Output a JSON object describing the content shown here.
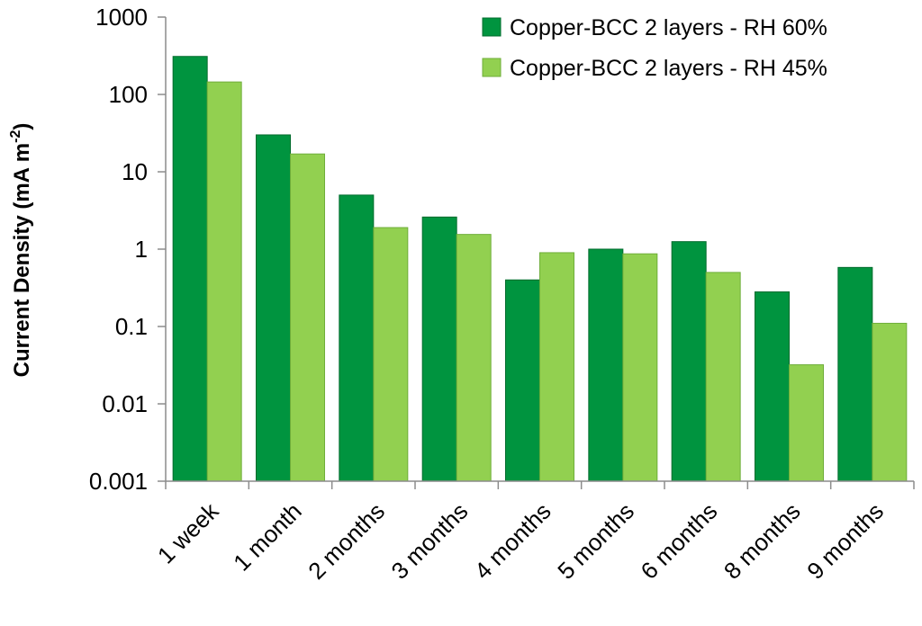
{
  "chart_data": {
    "type": "bar",
    "categories": [
      "1 week",
      "1 month",
      "2 months",
      "3 months",
      "4 months",
      "5 months",
      "6 months",
      "8 months",
      "9 months"
    ],
    "series": [
      {
        "name": "Copper-BCC 2 layers - RH 60%",
        "color": "#00943f",
        "values": [
          310,
          30,
          5,
          2.6,
          0.4,
          1.0,
          1.25,
          0.28,
          0.58
        ]
      },
      {
        "name": "Copper-BCC 2 layers - RH 45%",
        "color": "#92d050",
        "values": [
          145,
          17,
          1.9,
          1.55,
          0.9,
          0.87,
          0.5,
          0.032,
          0.11
        ]
      }
    ],
    "y_axis": {
      "label_main": "Current Density (mA m",
      "label_sup": "-2",
      "label_close": ")",
      "scale": "log",
      "ylim": [
        0.001,
        1000
      ],
      "ticks": [
        1000,
        100,
        10,
        1,
        0.1,
        0.01,
        0.001
      ],
      "tick_labels": [
        "1000",
        "100",
        "10",
        "1",
        "0.1",
        "0.01",
        "0.001"
      ]
    },
    "xlabel": "",
    "title": "",
    "legend_position": "top-right",
    "grid": false
  }
}
